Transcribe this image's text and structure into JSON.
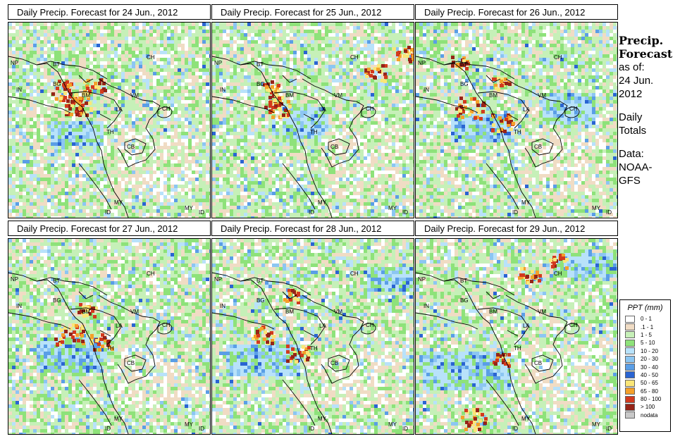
{
  "panels": [
    {
      "title": "Daily Precip. Forecast for  24 Jun., 2012",
      "seed": 11,
      "hot": [
        [
          80,
          95,
          5
        ],
        [
          95,
          120,
          4
        ],
        [
          120,
          90,
          4
        ],
        [
          100,
          110,
          4
        ]
      ],
      "heavy": [
        [
          60,
          140,
          70,
          30
        ]
      ]
    },
    {
      "title": "Daily Precip. Forecast for  25 Jun., 2012",
      "seed": 23,
      "hot": [
        [
          95,
          120,
          4
        ],
        [
          270,
          45,
          4
        ],
        [
          230,
          70,
          4
        ],
        [
          80,
          90,
          3
        ],
        [
          85,
          110,
          3
        ]
      ],
      "heavy": [
        [
          100,
          120,
          60,
          40
        ]
      ]
    },
    {
      "title": "Daily Precip. Forecast for  26 Jun., 2012",
      "seed": 37,
      "hot": [
        [
          75,
          120,
          5
        ],
        [
          120,
          140,
          4
        ],
        [
          60,
          55,
          3
        ],
        [
          120,
          85,
          3
        ]
      ],
      "heavy": [
        [
          50,
          130,
          80,
          35
        ],
        [
          180,
          100,
          70,
          40
        ]
      ]
    },
    {
      "title": "Daily Precip. Forecast for  27 Jun., 2012",
      "seed": 41,
      "hot": [
        [
          85,
          135,
          5
        ],
        [
          130,
          145,
          4
        ],
        [
          110,
          100,
          3
        ]
      ],
      "heavy": [
        [
          40,
          140,
          90,
          45
        ]
      ]
    },
    {
      "title": "Daily Precip. Forecast for  28 Jun., 2012",
      "seed": 53,
      "hot": [
        [
          70,
          135,
          4
        ],
        [
          120,
          160,
          4
        ],
        [
          110,
          80,
          3
        ]
      ],
      "heavy": [
        [
          20,
          150,
          100,
          40
        ],
        [
          220,
          40,
          60,
          30
        ]
      ]
    },
    {
      "title": "Daily Precip. Forecast for  29 Jun., 2012",
      "seed": 67,
      "hot": [
        [
          80,
          255,
          5
        ],
        [
          160,
          50,
          4
        ],
        [
          200,
          30,
          3
        ],
        [
          120,
          170,
          3
        ]
      ],
      "heavy": [
        [
          10,
          160,
          120,
          50
        ],
        [
          200,
          20,
          80,
          30
        ]
      ]
    }
  ],
  "labels": [
    {
      "t": "NP",
      "c": "np"
    },
    {
      "t": "BT",
      "c": "bt"
    },
    {
      "t": "CH",
      "c": "ch"
    },
    {
      "t": "IN",
      "c": "in"
    },
    {
      "t": "BG",
      "c": "bg"
    },
    {
      "t": "BM",
      "c": "bm"
    },
    {
      "t": "VM",
      "c": "vm"
    },
    {
      "t": "CH",
      "c": "ch2"
    },
    {
      "t": "LA",
      "c": "la"
    },
    {
      "t": "TH",
      "c": "th"
    },
    {
      "t": "CB",
      "c": "cb"
    },
    {
      "t": "MY",
      "c": "my"
    },
    {
      "t": "MY",
      "c": "my2"
    },
    {
      "t": "ID",
      "c": "id"
    },
    {
      "t": "ID",
      "c": "id2"
    }
  ],
  "side": {
    "title1": "Precip.",
    "title2": "Forecast",
    "asof1": "as of:",
    "asof2": "24 Jun.",
    "asof3": "2012",
    "daily1": "Daily",
    "daily2": "Totals",
    "data1": "Data:",
    "data2": "NOAA-",
    "data3": "GFS"
  },
  "legend": {
    "title": "PPT (mm)",
    "items": [
      {
        "label": "0 - 1",
        "color": "#ffffff"
      },
      {
        "label": ".1 - 1",
        "color": "#f0dcc4"
      },
      {
        "label": "1 - 5",
        "color": "#c6f0b8"
      },
      {
        "label": "5 - 10",
        "color": "#8ee27a"
      },
      {
        "label": "10 - 20",
        "color": "#b8e2fa"
      },
      {
        "label": "20 - 30",
        "color": "#8cc6f2"
      },
      {
        "label": "30 - 40",
        "color": "#5a9ee6"
      },
      {
        "label": "40 - 50",
        "color": "#2a64d2"
      },
      {
        "label": "50 - 65",
        "color": "#fae678"
      },
      {
        "label": "65 - 80",
        "color": "#f4a02a"
      },
      {
        "label": "80 - 100",
        "color": "#d23a1e"
      },
      {
        "label": "> 100",
        "color": "#962418"
      },
      {
        "label": "nodata",
        "color": "#c8c8c8"
      }
    ]
  }
}
